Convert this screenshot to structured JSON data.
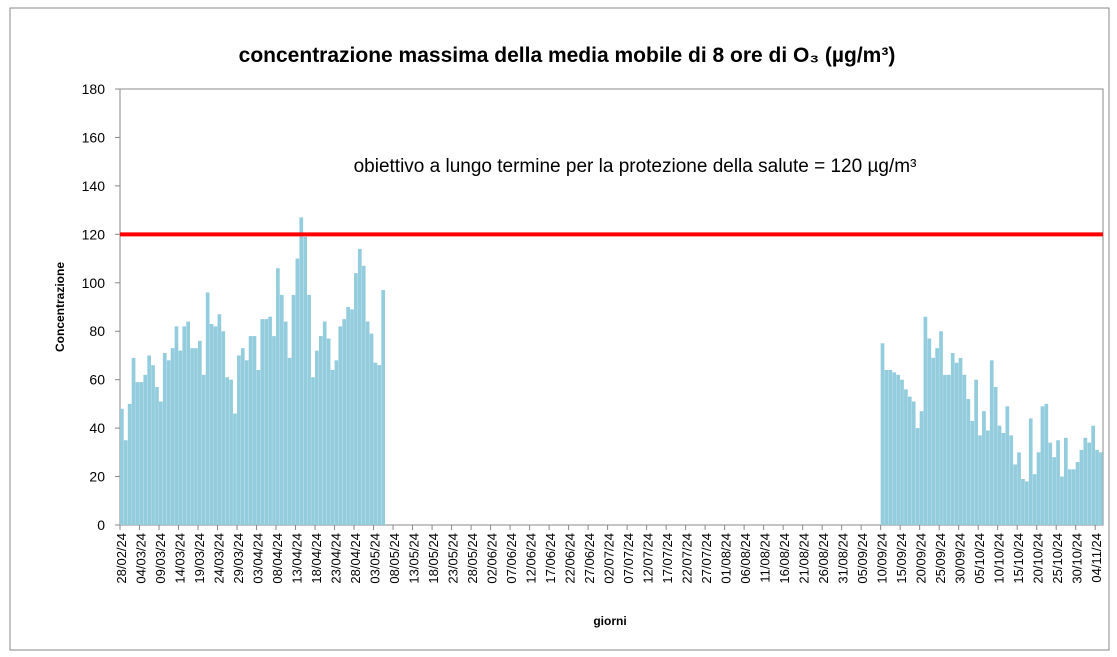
{
  "chart_data": {
    "type": "bar",
    "title": "concentrazione massima della media mobile di 8 ore di O₃ (µg/m³)",
    "x_label": "giorni",
    "y_label": "Concentrazione",
    "annotation": "obiettivo a lungo termine per la protezione della salute = 120 µg/m³",
    "threshold": {
      "value": 120,
      "color": "#ff0000"
    },
    "color": "#93cddd",
    "ylim": [
      0,
      180
    ],
    "yticks": [
      0,
      20,
      40,
      60,
      80,
      100,
      120,
      140,
      160,
      180
    ],
    "categories": [
      "28/02/24",
      null,
      null,
      null,
      null,
      "04/03/24",
      null,
      null,
      null,
      null,
      "09/03/24",
      null,
      null,
      null,
      null,
      "14/03/24",
      null,
      null,
      null,
      null,
      "19/03/24",
      null,
      null,
      null,
      null,
      "24/03/24",
      null,
      null,
      null,
      null,
      "29/03/24",
      null,
      null,
      null,
      null,
      "03/04/24",
      null,
      null,
      null,
      null,
      "08/04/24",
      null,
      null,
      null,
      null,
      "13/04/24",
      null,
      null,
      null,
      null,
      "18/04/24",
      null,
      null,
      null,
      null,
      "23/04/24",
      null,
      null,
      null,
      null,
      "28/04/24",
      null,
      null,
      null,
      null,
      "03/05/24",
      null,
      null,
      null,
      null,
      "08/05/24",
      null,
      null,
      null,
      null,
      "13/05/24",
      null,
      null,
      null,
      null,
      "18/05/24",
      null,
      null,
      null,
      null,
      "23/05/24",
      null,
      null,
      null,
      null,
      "28/05/24",
      null,
      null,
      null,
      null,
      "02/06/24",
      null,
      null,
      null,
      null,
      "07/06/24",
      null,
      null,
      null,
      null,
      "12/06/24",
      null,
      null,
      null,
      null,
      "17/06/24",
      null,
      null,
      null,
      null,
      "22/06/24",
      null,
      null,
      null,
      null,
      "27/06/24",
      null,
      null,
      null,
      null,
      "02/07/24",
      null,
      null,
      null,
      null,
      "07/07/24",
      null,
      null,
      null,
      null,
      "12/07/24",
      null,
      null,
      null,
      null,
      "17/07/24",
      null,
      null,
      null,
      null,
      "22/07/24",
      null,
      null,
      null,
      null,
      "27/07/24",
      null,
      null,
      null,
      null,
      "01/08/24",
      null,
      null,
      null,
      null,
      "06/08/24",
      null,
      null,
      null,
      null,
      "11/08/24",
      null,
      null,
      null,
      null,
      "16/08/24",
      null,
      null,
      null,
      null,
      "21/08/24",
      null,
      null,
      null,
      null,
      "26/08/24",
      null,
      null,
      null,
      null,
      "31/08/24",
      null,
      null,
      null,
      null,
      "05/09/24",
      null,
      null,
      null,
      null,
      "10/09/24",
      null,
      null,
      null,
      null,
      "15/09/24",
      null,
      null,
      null,
      null,
      "20/09/24",
      null,
      null,
      null,
      null,
      "25/09/24",
      null,
      null,
      null,
      null,
      "30/09/24",
      null,
      null,
      null,
      null,
      "05/10/24",
      null,
      null,
      null,
      null,
      "10/10/24",
      null,
      null,
      null,
      null,
      "15/10/24",
      null,
      null,
      null,
      null,
      "20/10/24",
      null,
      null,
      null,
      null,
      "25/10/24",
      null,
      null,
      null,
      null,
      "30/10/24",
      null,
      null,
      null,
      null,
      "04/11/24",
      null
    ],
    "values": [
      48,
      35,
      50,
      69,
      59,
      59,
      62,
      70,
      66,
      57,
      51,
      71,
      68,
      73,
      82,
      72,
      82,
      84,
      73,
      73,
      76,
      62,
      96,
      83,
      82,
      87,
      80,
      61,
      60,
      46,
      70,
      73,
      68,
      78,
      78,
      64,
      85,
      85,
      86,
      78,
      106,
      95,
      84,
      69,
      95,
      110,
      127,
      119,
      95,
      61,
      72,
      78,
      84,
      77,
      64,
      68,
      82,
      85,
      90,
      89,
      104,
      114,
      107,
      84,
      79,
      67,
      66,
      97,
      null,
      null,
      null,
      null,
      null,
      null,
      null,
      null,
      null,
      null,
      null,
      null,
      null,
      null,
      null,
      null,
      null,
      null,
      null,
      null,
      null,
      null,
      null,
      null,
      null,
      null,
      null,
      null,
      null,
      null,
      null,
      null,
      null,
      null,
      null,
      null,
      null,
      null,
      null,
      null,
      null,
      null,
      null,
      null,
      null,
      null,
      null,
      null,
      null,
      null,
      null,
      null,
      null,
      null,
      null,
      null,
      null,
      null,
      null,
      null,
      null,
      null,
      null,
      null,
      null,
      null,
      null,
      null,
      null,
      null,
      null,
      null,
      null,
      null,
      null,
      null,
      null,
      null,
      null,
      null,
      null,
      null,
      null,
      null,
      null,
      null,
      null,
      null,
      null,
      null,
      null,
      null,
      null,
      null,
      null,
      null,
      null,
      null,
      null,
      null,
      null,
      null,
      null,
      null,
      null,
      null,
      null,
      null,
      null,
      null,
      null,
      null,
      null,
      null,
      null,
      null,
      null,
      null,
      null,
      null,
      null,
      null,
      null,
      null,
      null,
      null,
      null,
      75,
      64,
      64,
      63,
      62,
      60,
      56,
      53,
      51,
      40,
      47,
      86,
      77,
      69,
      73,
      80,
      62,
      62,
      71,
      67,
      69,
      62,
      52,
      43,
      60,
      37,
      47,
      39,
      68,
      57,
      41,
      38,
      49,
      37,
      25,
      30,
      19,
      18,
      44,
      21,
      30,
      49,
      50,
      34,
      28,
      35,
      20,
      36,
      23,
      23,
      26,
      31,
      36,
      34,
      41,
      31,
      30
    ]
  }
}
